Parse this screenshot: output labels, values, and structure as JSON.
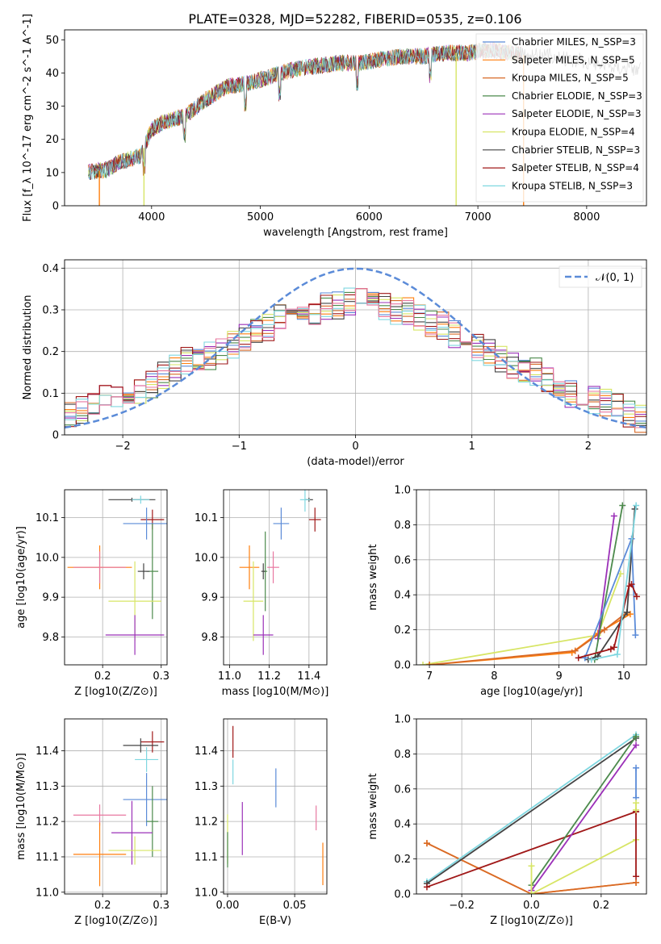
{
  "figure": {
    "title": "PLATE=0328, MJD=52282, FIBERID=0535, z=0.106"
  },
  "colors": {
    "chabrier_miles": "#5b8bd8",
    "salpeter_miles": "#ff7f0e",
    "kroupa_miles": "#d86a27",
    "chabrier_elodie": "#4c8a4c",
    "salpeter_elodie": "#9b30b8",
    "kroupa_elodie": "#d7e565",
    "chabrier_stelib": "#444444",
    "salpeter_stelib": "#a01818",
    "kroupa_stelib": "#7fd7e0",
    "pink": "#e878a0",
    "gaussian": "#5b8bd8",
    "grid": "#b0b0b0"
  },
  "chart_data": [
    {
      "id": "spectrum",
      "type": "line",
      "title": "PLATE=0328, MJD=52282, FIBERID=0535, z=0.106",
      "xlabel": "wavelength [Angstrom, rest frame]",
      "ylabel": "Flux [f_λ 10^-17 erg cm^-2 s^-1 A^-1]",
      "xlim": [
        3200,
        8550
      ],
      "ylim": [
        0,
        53
      ],
      "xticks": [
        4000,
        5000,
        6000,
        7000,
        8000
      ],
      "yticks": [
        0,
        10,
        20,
        30,
        40,
        50
      ],
      "legend_position": "upper right",
      "legend": [
        "Chabrier MILES, N_SSP=3",
        "Salpeter MILES, N_SSP=5",
        "Kroupa MILES, N_SSP=5",
        "Chabrier ELODIE, N_SSP=3",
        "Salpeter ELODIE, N_SSP=3",
        "Kroupa ELODIE, N_SSP=4",
        "Chabrier STELIB, N_SSP=3",
        "Salpeter STELIB, N_SSP=4",
        "Kroupa STELIB, N_SSP=3"
      ],
      "continuum": {
        "x": [
          3420,
          3600,
          3700,
          3800,
          3900,
          4000,
          4100,
          4300,
          4500,
          4700,
          4900,
          5100,
          5300,
          5500,
          5700,
          5900,
          6100,
          6300,
          6500,
          6700,
          6900,
          7100,
          7300,
          7500,
          7700,
          7900,
          8100,
          8300,
          8500
        ],
        "y": [
          10,
          11,
          13,
          14,
          15,
          23,
          25,
          27,
          32,
          36,
          37,
          39,
          41,
          42,
          43,
          43,
          44,
          45,
          45,
          46,
          46,
          47,
          46,
          45,
          45,
          44,
          43,
          42,
          41
        ]
      },
      "dropouts": [
        {
          "x": 3520,
          "y": 0
        },
        {
          "x": 3930,
          "y": 0
        },
        {
          "x": 6800,
          "y": 0
        },
        {
          "x": 7420,
          "y": 0
        }
      ]
    },
    {
      "id": "residuals",
      "type": "histogram",
      "xlabel": "(data-model)/error",
      "ylabel": "Normed distribution",
      "xlim": [
        -2.5,
        2.5
      ],
      "ylim": [
        0,
        0.42
      ],
      "xticks": [
        -2,
        -1,
        0,
        1,
        2
      ],
      "yticks": [
        0.0,
        0.1,
        0.2,
        0.3,
        0.4
      ],
      "legend_position": "upper right",
      "gaussian_label": "𝒩(0, 1)",
      "bin_width": 0.1,
      "bins_from": -2.5,
      "hist_shape": [
        0.045,
        0.06,
        0.08,
        0.09,
        0.095,
        0.1,
        0.105,
        0.12,
        0.14,
        0.16,
        0.18,
        0.185,
        0.19,
        0.2,
        0.215,
        0.23,
        0.25,
        0.26,
        0.28,
        0.29,
        0.3,
        0.3,
        0.31,
        0.31,
        0.32,
        0.32,
        0.31,
        0.31,
        0.3,
        0.3,
        0.28,
        0.27,
        0.26,
        0.24,
        0.22,
        0.21,
        0.2,
        0.18,
        0.17,
        0.16,
        0.15,
        0.13,
        0.12,
        0.1,
        0.09,
        0.085,
        0.075,
        0.065,
        0.05,
        0.04
      ]
    },
    {
      "id": "age-vs-Z",
      "type": "errorbar",
      "xlabel": "Z [log10(Z/Z⊙)]",
      "ylabel": "age [log10(age/yr)]",
      "xlim": [
        0.135,
        0.31
      ],
      "ylim": [
        9.73,
        10.17
      ],
      "xticks": [
        0.2,
        0.3
      ],
      "xticklabels": [
        "0.2",
        "0.3"
      ],
      "yticks": [
        9.8,
        9.9,
        10.0,
        10.1
      ],
      "yticklabels": [
        "9.8",
        "9.9",
        "10.0",
        "10.1"
      ],
      "points": [
        {
          "s": "chabrier_stelib",
          "x": 0.25,
          "y": 10.145,
          "xe": 0.04,
          "ye": 0.005
        },
        {
          "s": "kroupa_stelib",
          "x": 0.265,
          "y": 10.145,
          "xe": 0.015,
          "ye": 0.01
        },
        {
          "s": "salpeter_stelib",
          "x": 0.285,
          "y": 10.095,
          "xe": 0.02,
          "ye": 0.025
        },
        {
          "s": "chabrier_miles",
          "x": 0.275,
          "y": 10.085,
          "xe": 0.04,
          "ye": 0.04
        },
        {
          "s": "salpeter_miles",
          "x": 0.195,
          "y": 9.975,
          "xe": 0.055,
          "ye": 0.055
        },
        {
          "s": "pink",
          "x": 0.195,
          "y": 9.975,
          "xe": 0.045,
          "ye": 0.04
        },
        {
          "s": "chabrier_elodie",
          "x": 0.285,
          "y": 9.965,
          "xe": 0.01,
          "ye": 0.12
        },
        {
          "s": "chabrier_stelib",
          "x": 0.27,
          "y": 9.965,
          "xe": 0.01,
          "ye": 0.02
        },
        {
          "s": "kroupa_elodie",
          "x": 0.255,
          "y": 9.89,
          "xe": 0.045,
          "ye": 0.1
        },
        {
          "s": "salpeter_elodie",
          "x": 0.255,
          "y": 9.805,
          "xe": 0.05,
          "ye": 0.05
        }
      ]
    },
    {
      "id": "age-vs-mass",
      "type": "errorbar",
      "xlabel": "mass [log10(M/M⊙)]",
      "ylabel": "",
      "xlim": [
        10.97,
        11.49
      ],
      "ylim": [
        9.73,
        10.17
      ],
      "xticks": [
        11.0,
        11.2,
        11.4
      ],
      "xticklabels": [
        "11.0",
        "11.2",
        "11.4"
      ],
      "yticks": [
        9.8,
        9.9,
        10.0,
        10.1
      ],
      "yticklabels": [
        "9.8",
        "9.9",
        "10.0",
        "10.1"
      ],
      "points": [
        {
          "s": "chabrier_stelib",
          "x": 11.4,
          "y": 10.145,
          "xe": 0.02,
          "ye": 0.005
        },
        {
          "s": "kroupa_stelib",
          "x": 11.38,
          "y": 10.145,
          "xe": 0.025,
          "ye": 0.03
        },
        {
          "s": "salpeter_stelib",
          "x": 11.43,
          "y": 10.095,
          "xe": 0.03,
          "ye": 0.03
        },
        {
          "s": "chabrier_miles",
          "x": 11.26,
          "y": 10.085,
          "xe": 0.04,
          "ye": 0.04
        },
        {
          "s": "salpeter_miles",
          "x": 11.1,
          "y": 9.975,
          "xe": 0.05,
          "ye": 0.055
        },
        {
          "s": "pink",
          "x": 11.22,
          "y": 9.975,
          "xe": 0.03,
          "ye": 0.04
        },
        {
          "s": "chabrier_elodie",
          "x": 11.18,
          "y": 9.965,
          "xe": 0.01,
          "ye": 0.1
        },
        {
          "s": "chabrier_stelib",
          "x": 11.17,
          "y": 9.965,
          "xe": 0.01,
          "ye": 0.02
        },
        {
          "s": "kroupa_elodie",
          "x": 11.12,
          "y": 9.89,
          "xe": 0.05,
          "ye": 0.1
        },
        {
          "s": "salpeter_elodie",
          "x": 11.17,
          "y": 9.805,
          "xe": 0.05,
          "ye": 0.05
        }
      ]
    },
    {
      "id": "weight-vs-age",
      "type": "line",
      "xlabel": "age [log10(age/yr)]",
      "ylabel": "mass weight",
      "xlim": [
        6.8,
        10.35
      ],
      "ylim": [
        0,
        1.0
      ],
      "xticks": [
        7,
        8,
        9,
        10
      ],
      "xticklabels": [
        "7",
        "8",
        "9",
        "10"
      ],
      "yticks": [
        0.0,
        0.2,
        0.4,
        0.6,
        0.8,
        1.0
      ],
      "yticklabels": [
        "0.0",
        "0.2",
        "0.4",
        "0.6",
        "0.8",
        "1.0"
      ],
      "series": [
        {
          "s": "kroupa_elodie",
          "x": [
            6.9,
            9.6,
            9.95
          ],
          "y": [
            0.0,
            0.17,
            0.52
          ]
        },
        {
          "s": "salpeter_miles",
          "x": [
            7.0,
            9.2,
            9.6,
            10.1
          ],
          "y": [
            0.0,
            0.07,
            0.18,
            0.29
          ]
        },
        {
          "s": "kroupa_miles",
          "x": [
            7.0,
            9.25,
            9.7,
            10.05
          ],
          "y": [
            0.0,
            0.08,
            0.2,
            0.3
          ]
        },
        {
          "s": "salpeter_elodie",
          "x": [
            9.6,
            9.85
          ],
          "y": [
            0.15,
            0.85
          ]
        },
        {
          "s": "chabrier_elodie",
          "x": [
            9.55,
            9.98
          ],
          "y": [
            0.03,
            0.91
          ]
        },
        {
          "s": "chabrier_stelib",
          "x": [
            9.45,
            9.6,
            10.05,
            10.17
          ],
          "y": [
            0.03,
            0.05,
            0.3,
            0.89
          ]
        },
        {
          "s": "chabrier_miles",
          "x": [
            9.4,
            10.12,
            10.18
          ],
          "y": [
            0.04,
            0.72,
            0.17
          ]
        },
        {
          "s": "salpeter_stelib",
          "x": [
            9.3,
            9.8,
            9.85,
            10.08,
            10.12,
            10.2
          ],
          "y": [
            0.04,
            0.09,
            0.1,
            0.45,
            0.46,
            0.39
          ]
        },
        {
          "s": "kroupa_stelib",
          "x": [
            9.5,
            9.9,
            10.19
          ],
          "y": [
            0.03,
            0.06,
            0.91
          ]
        }
      ]
    },
    {
      "id": "mass-vs-Z",
      "type": "errorbar",
      "xlabel": "Z [log10(Z/Z⊙)]",
      "ylabel": "mass [log10(M/M⊙)]",
      "xlim": [
        0.135,
        0.31
      ],
      "ylim": [
        10.995,
        11.49
      ],
      "xticks": [
        0.2,
        0.3
      ],
      "xticklabels": [
        "0.2",
        "0.3"
      ],
      "yticks": [
        11.0,
        11.1,
        11.2,
        11.3,
        11.4
      ],
      "yticklabels": [
        "11.0",
        "11.1",
        "11.2",
        "11.3",
        "11.4"
      ],
      "points": [
        {
          "s": "salpeter_stelib",
          "x": 0.285,
          "y": 11.425,
          "xe": 0.02,
          "ye": 0.03
        },
        {
          "s": "chabrier_stelib",
          "x": 0.265,
          "y": 11.415,
          "xe": 0.03,
          "ye": 0.02
        },
        {
          "s": "kroupa_stelib",
          "x": 0.275,
          "y": 11.375,
          "xe": 0.02,
          "ye": 0.035
        },
        {
          "s": "chabrier_miles",
          "x": 0.275,
          "y": 11.262,
          "xe": 0.04,
          "ye": 0.075
        },
        {
          "s": "pink",
          "x": 0.195,
          "y": 11.218,
          "xe": 0.045,
          "ye": 0.03
        },
        {
          "s": "chabrier_elodie",
          "x": 0.285,
          "y": 11.2,
          "xe": 0.01,
          "ye": 0.1
        },
        {
          "s": "salpeter_elodie",
          "x": 0.25,
          "y": 11.168,
          "xe": 0.035,
          "ye": 0.09
        },
        {
          "s": "kroupa_elodie",
          "x": 0.255,
          "y": 11.118,
          "xe": 0.045,
          "ye": 0.04
        },
        {
          "s": "salpeter_miles",
          "x": 0.195,
          "y": 11.107,
          "xe": 0.045,
          "ye": 0.09
        }
      ]
    },
    {
      "id": "mass-vs-ebv",
      "type": "errorbar",
      "xlabel": "E(B-V)",
      "ylabel": "",
      "xlim": [
        -0.003,
        0.074
      ],
      "ylim": [
        10.995,
        11.49
      ],
      "xticks": [
        0.0,
        0.05
      ],
      "xticklabels": [
        "0.00",
        "0.05"
      ],
      "yticks": [
        11.0,
        11.1,
        11.2,
        11.3,
        11.4
      ],
      "yticklabels": [
        "11.0",
        "11.1",
        "11.2",
        "11.3",
        "11.4"
      ],
      "points": [
        {
          "s": "salpeter_stelib",
          "x": 0.004,
          "y": 11.425,
          "xe": 0,
          "ye": 0.045
        },
        {
          "s": "kroupa_stelib",
          "x": 0.004,
          "y": 11.34,
          "xe": 0,
          "ye": 0.035
        },
        {
          "s": "chabrier_miles",
          "x": 0.036,
          "y": 11.295,
          "xe": 0,
          "ye": 0.055
        },
        {
          "s": "pink",
          "x": 0.066,
          "y": 11.21,
          "xe": 0,
          "ye": 0.035
        },
        {
          "s": "salpeter_elodie",
          "x": 0.011,
          "y": 11.18,
          "xe": 0,
          "ye": 0.075
        },
        {
          "s": "kroupa_elodie",
          "x": 0.0,
          "y": 11.15,
          "xe": 0,
          "ye": 0.07
        },
        {
          "s": "chabrier_elodie",
          "x": 0.0,
          "y": 11.12,
          "xe": 0,
          "ye": 0.05
        },
        {
          "s": "salpeter_miles",
          "x": 0.071,
          "y": 11.08,
          "xe": 0,
          "ye": 0.06
        }
      ]
    },
    {
      "id": "weight-vs-Z",
      "type": "line",
      "xlabel": "Z [log10(Z/Z⊙)]",
      "ylabel": "mass weight",
      "xlim": [
        -0.33,
        0.33
      ],
      "ylim": [
        0,
        1.0
      ],
      "xticks": [
        -0.2,
        0.0,
        0.2
      ],
      "xticklabels": [
        "−0.2",
        "0.0",
        "0.2"
      ],
      "yticks": [
        0.0,
        0.2,
        0.4,
        0.6,
        0.8,
        1.0
      ],
      "yticklabels": [
        "0.0",
        "0.2",
        "0.4",
        "0.6",
        "0.8",
        "1.0"
      ],
      "series": [
        {
          "s": "salpeter_miles",
          "x": [
            -0.3,
            0.0,
            0.3
          ],
          "y": [
            0.29,
            0.0,
            0.065
          ]
        },
        {
          "s": "kroupa_miles",
          "x": [
            -0.3,
            0.0,
            0.3
          ],
          "y": [
            0.29,
            0.0,
            0.065
          ]
        },
        {
          "s": "kroupa_stelib",
          "x": [
            -0.3,
            0.3
          ],
          "y": [
            0.07,
            0.91
          ]
        },
        {
          "s": "chabrier_stelib",
          "x": [
            -0.3,
            0.3
          ],
          "y": [
            0.06,
            0.89
          ]
        },
        {
          "s": "salpeter_stelib",
          "x": [
            -0.3,
            0.3
          ],
          "y": [
            0.04,
            0.47
          ]
        },
        {
          "s": "chabrier_elodie",
          "x": [
            0.0,
            0.3
          ],
          "y": [
            0.05,
            0.9
          ]
        },
        {
          "s": "salpeter_elodie",
          "x": [
            0.0,
            0.3
          ],
          "y": [
            0.02,
            0.85
          ]
        },
        {
          "s": "kroupa_elodie",
          "x": [
            0.0,
            0.3
          ],
          "y": [
            0.0,
            0.31
          ]
        },
        {
          "s": "chabrier_miles",
          "x": [
            0.3,
            0.3
          ],
          "y": [
            0.55,
            0.72
          ]
        },
        {
          "s": "salpeter_stelib",
          "x": [
            0.3,
            0.3
          ],
          "y": [
            0.1,
            0.47
          ]
        },
        {
          "s": "kroupa_elodie",
          "x": [
            0.3,
            0.3
          ],
          "y": [
            0.48,
            0.52
          ]
        },
        {
          "s": "kroupa_elodie",
          "x": [
            0.0,
            0.0
          ],
          "y": [
            0.0,
            0.16
          ]
        }
      ]
    }
  ]
}
